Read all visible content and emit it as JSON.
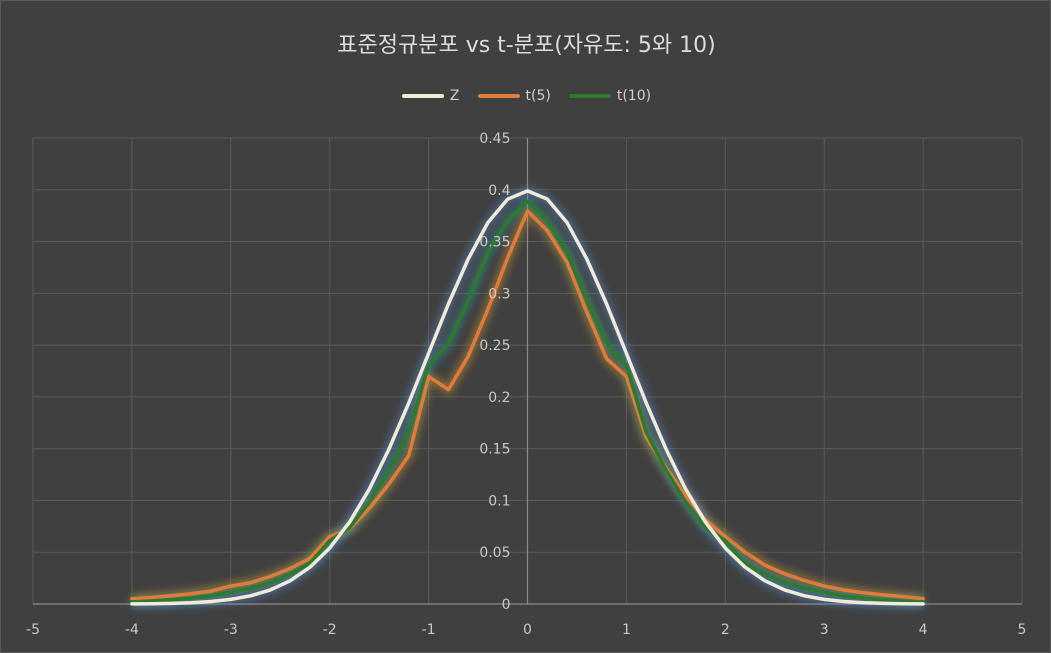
{
  "chart_data": {
    "type": "line",
    "title": "표준정규분포 vs t-분포(자유도: 5와 10)",
    "xlabel": "",
    "ylabel": "",
    "xlim": [
      -5,
      5
    ],
    "ylim": [
      0,
      0.45
    ],
    "x_ticks": [
      "-5",
      "-4",
      "-3",
      "-2",
      "-1",
      "0",
      "1",
      "2",
      "3",
      "4",
      "5"
    ],
    "y_ticks": [
      "0",
      "0.05",
      "0.1",
      "0.15",
      "0.2",
      "0.25",
      "0.3",
      "0.35",
      "0.4",
      "0.45"
    ],
    "grid": true,
    "legend_position": "top-center",
    "x": [
      -4,
      -3.8,
      -3.6,
      -3.4,
      -3.2,
      -3,
      -2.8,
      -2.6,
      -2.4,
      -2.2,
      -2,
      -1.8,
      -1.6,
      -1.4,
      -1.2,
      -1,
      -0.8,
      -0.6,
      -0.4,
      -0.2,
      0,
      0.2,
      0.4,
      0.6,
      0.8,
      1,
      1.2,
      1.4,
      1.6,
      1.8,
      2,
      2.2,
      2.4,
      2.6,
      2.8,
      3,
      3.2,
      3.4,
      3.6,
      3.8,
      4
    ],
    "series": [
      {
        "name": "Z",
        "color": "#f2ead8",
        "glow": "#5b8fd6",
        "values": [
          0.0001,
          0.0003,
          0.0006,
          0.0012,
          0.0024,
          0.0044,
          0.0079,
          0.0136,
          0.0224,
          0.0355,
          0.054,
          0.079,
          0.1109,
          0.1497,
          0.1942,
          0.242,
          0.2897,
          0.3332,
          0.3683,
          0.391,
          0.3989,
          0.391,
          0.3683,
          0.3332,
          0.2897,
          0.242,
          0.1942,
          0.1497,
          0.1109,
          0.079,
          0.054,
          0.0355,
          0.0224,
          0.0136,
          0.0079,
          0.0044,
          0.0024,
          0.0012,
          0.0006,
          0.0003,
          0.0001
        ]
      },
      {
        "name": "t(5)",
        "color": "#e07b39",
        "glow": "#e0a030",
        "values": [
          0.0051,
          0.0063,
          0.0079,
          0.0099,
          0.0125,
          0.0173,
          0.0207,
          0.0266,
          0.0342,
          0.0441,
          0.0651,
          0.0726,
          0.0922,
          0.116,
          0.1433,
          0.2197,
          0.2069,
          0.2392,
          0.2846,
          0.3345,
          0.3796,
          0.3606,
          0.3298,
          0.2819,
          0.2369,
          0.2197,
          0.1609,
          0.1315,
          0.1044,
          0.0812,
          0.0651,
          0.0499,
          0.0376,
          0.0291,
          0.0227,
          0.0173,
          0.0135,
          0.0109,
          0.0088,
          0.0071,
          0.0051
        ]
      },
      {
        "name": "t(10)",
        "color": "#2d7a2d",
        "glow": "#2aa0a0",
        "values": [
          0.002,
          0.0029,
          0.004,
          0.0056,
          0.0078,
          0.0114,
          0.0152,
          0.0209,
          0.0287,
          0.0393,
          0.0611,
          0.0735,
          0.0985,
          0.1294,
          0.166,
          0.2304,
          0.2516,
          0.2931,
          0.3393,
          0.3703,
          0.3891,
          0.3703,
          0.3393,
          0.2931,
          0.2516,
          0.2304,
          0.166,
          0.1294,
          0.0985,
          0.0735,
          0.0611,
          0.0393,
          0.0287,
          0.0209,
          0.0152,
          0.0114,
          0.0078,
          0.0056,
          0.004,
          0.0029,
          0.002
        ]
      }
    ]
  }
}
